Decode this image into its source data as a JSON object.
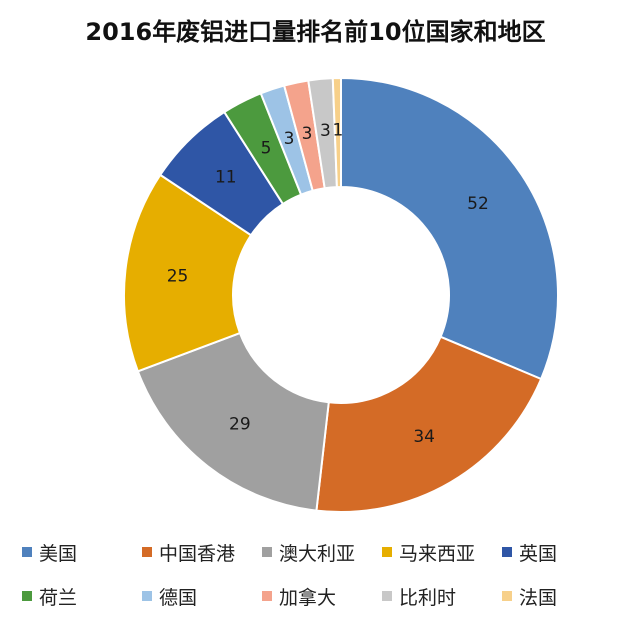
{
  "chart_data": {
    "type": "pie",
    "donut": true,
    "title": "2016年废铝进口量排名前10位国家和地区",
    "categories": [
      "美国",
      "中国香港",
      "澳大利亚",
      "马来西亚",
      "英国",
      "荷兰",
      "德国",
      "加拿大",
      "比利时",
      "法国"
    ],
    "values": [
      52,
      34,
      29,
      25,
      11,
      5,
      3,
      3,
      3,
      1
    ],
    "colors": [
      "#4f81bd",
      "#d46b26",
      "#a0a0a0",
      "#e6ae00",
      "#2f56a6",
      "#4c9a3e",
      "#9dc3e6",
      "#f4a38c",
      "#c8c8c8",
      "#f7d08a"
    ],
    "legend_position": "bottom"
  }
}
